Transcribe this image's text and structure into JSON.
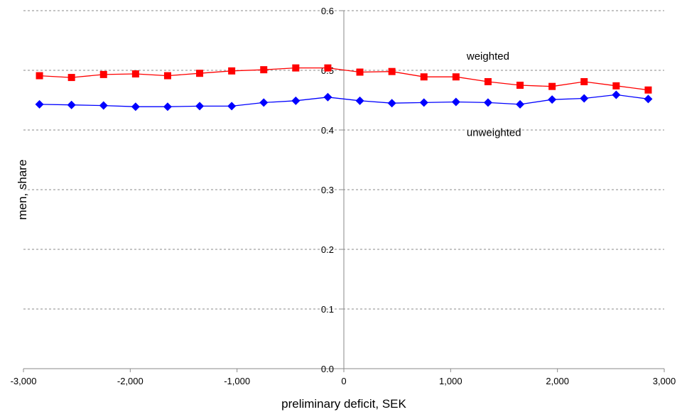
{
  "chart_data": {
    "type": "line",
    "title": "",
    "xlabel": "preliminary deficit, SEK",
    "ylabel": "men, share",
    "xlim": [
      -3000,
      3000
    ],
    "ylim": [
      0,
      0.6
    ],
    "x_ticks": [
      -3000,
      -2000,
      -1000,
      0,
      1000,
      2000,
      3000
    ],
    "x_tick_labels": [
      "-3,000",
      "-2,000",
      "-1,000",
      "0",
      "1,000",
      "2,000",
      "3,000"
    ],
    "y_ticks": [
      0,
      0.1,
      0.2,
      0.3,
      0.4,
      0.5,
      0.6
    ],
    "y_tick_labels": [
      "0.0",
      "0.1",
      "0.2",
      "0.3",
      "0.4",
      "0.5",
      "0.6"
    ],
    "grid": "horizontal dashed",
    "x": [
      -2850,
      -2550,
      -2250,
      -1950,
      -1650,
      -1350,
      -1050,
      -750,
      -450,
      -150,
      150,
      450,
      750,
      1050,
      1350,
      1650,
      1950,
      2250,
      2550,
      2850
    ],
    "series": [
      {
        "name": "weighted",
        "color": "#ff0000",
        "marker": "square",
        "values": [
          0.491,
          0.488,
          0.493,
          0.494,
          0.491,
          0.495,
          0.499,
          0.501,
          0.504,
          0.504,
          0.497,
          0.498,
          0.489,
          0.489,
          0.481,
          0.475,
          0.473,
          0.481,
          0.474,
          0.467
        ]
      },
      {
        "name": "unweighted",
        "color": "#0000ff",
        "marker": "diamond",
        "values": [
          0.443,
          0.442,
          0.441,
          0.439,
          0.439,
          0.44,
          0.44,
          0.446,
          0.449,
          0.455,
          0.449,
          0.445,
          0.446,
          0.447,
          0.446,
          0.443,
          0.451,
          0.453,
          0.459,
          0.452
        ]
      }
    ],
    "series_label_positions": {
      "weighted": {
        "x": 1150,
        "y": 0.524
      },
      "unweighted": {
        "x": 1150,
        "y": 0.396
      }
    }
  }
}
